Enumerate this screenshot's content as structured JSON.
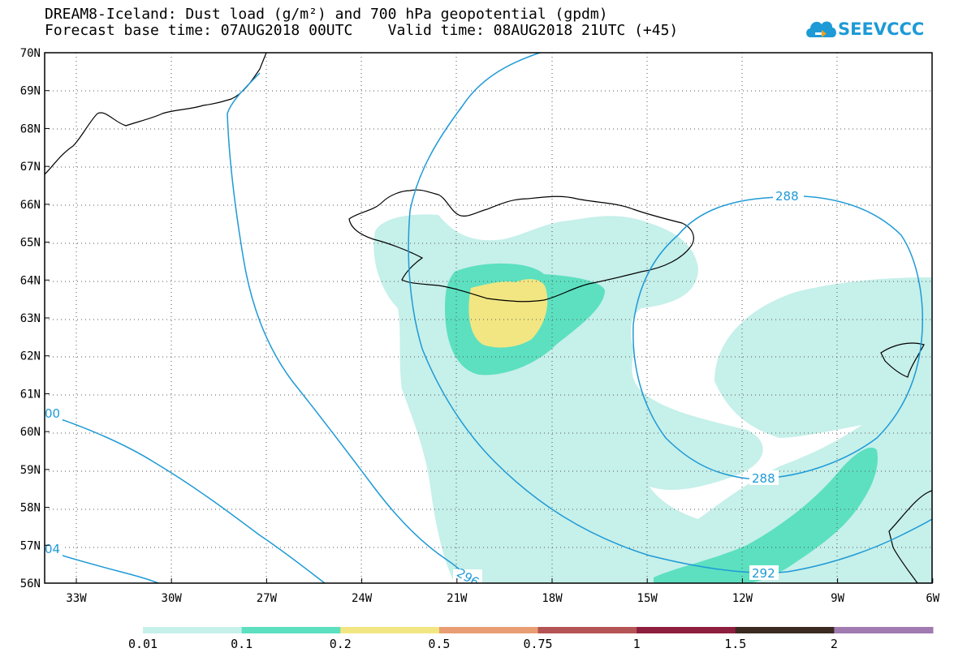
{
  "title": {
    "line1": "DREAM8-Iceland: Dust load (g/m²) and 700 hPa geopotential (gpdm)",
    "line2": "Forecast base time: 07AUG2018 00UTC    Valid time: 08AUG2018 21UTC (+45)"
  },
  "logo": {
    "text": "SEEVCCC",
    "icon": "cloud-icon"
  },
  "map": {
    "lat_ticks": [
      "70N",
      "69N",
      "68N",
      "67N",
      "66N",
      "65N",
      "64N",
      "63N",
      "62N",
      "61N",
      "60N",
      "59N",
      "58N",
      "57N",
      "56N"
    ],
    "lon_ticks": [
      "33W",
      "30W",
      "27W",
      "24W",
      "21W",
      "18W",
      "15W",
      "12W",
      "9W",
      "6W"
    ],
    "contour_labels": [
      "288",
      "288",
      "292",
      "296",
      "00",
      "04"
    ],
    "grid": true
  },
  "colorbar": {
    "labels": [
      "0.01",
      "0.1",
      "0.2",
      "0.5",
      "0.75",
      "1",
      "1.5",
      "2"
    ],
    "colors": [
      "#c6f0ea",
      "#5ce0c0",
      "#f2e682",
      "#e89e72",
      "#b45454",
      "#8e1e3e",
      "#3a2a20",
      "#a07ab0"
    ]
  }
}
